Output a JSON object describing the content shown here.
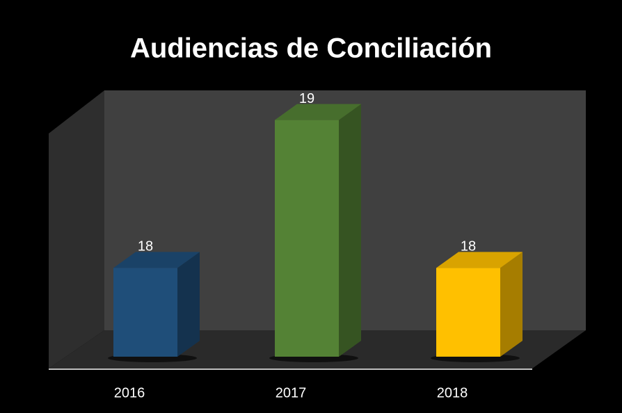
{
  "chart_data": {
    "type": "bar3d",
    "title": "Audiencias de Conciliación",
    "categories": [
      "2016",
      "2017",
      "2018"
    ],
    "values": [
      18,
      19,
      18
    ],
    "colors": [
      "#1f4e79",
      "#548235",
      "#ffc000"
    ],
    "ylim": [
      17.4,
      19.05
    ]
  }
}
